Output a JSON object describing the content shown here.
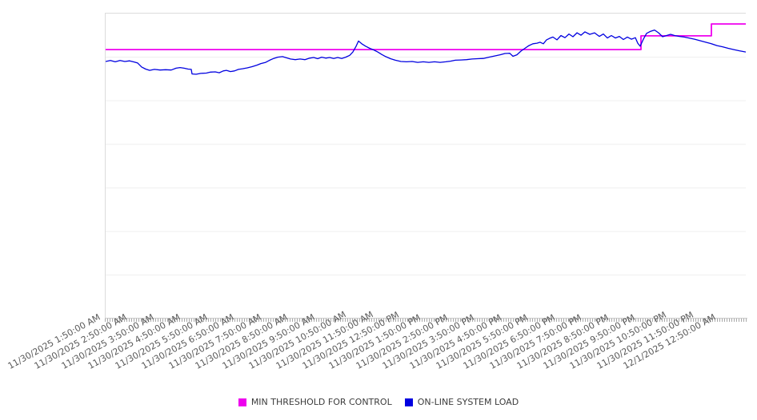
{
  "colors": {
    "background": "#ffffff",
    "grid": "#efefef",
    "plot_border": "#dcdcdc",
    "axis_line": "#c8c8c8",
    "tick": "#a8a8a8",
    "tick_label": "#595959",
    "legend_text": "#3c3c3c",
    "threshold_magenta": "#ee00ee",
    "load_blue": "#0000e0"
  },
  "chart_data": {
    "type": "line",
    "title": "",
    "x_axis": {
      "hours_span": 24,
      "tick_label_rotation_deg": -29,
      "labels": [
        "11/30/2025 1:50:00 AM",
        "11/30/2025 2:50:00 AM",
        "11/30/2025 3:50:00 AM",
        "11/30/2025 4:50:00 AM",
        "11/30/2025 5:50:00 AM",
        "11/30/2025 6:50:00 AM",
        "11/30/2025 7:50:00 AM",
        "11/30/2025 8:50:00 AM",
        "11/30/2025 9:50:00 AM",
        "11/30/2025 10:50:00 AM",
        "11/30/2025 11:50:00 AM",
        "11/30/2025 12:50:00 PM",
        "11/30/2025 1:50:00 PM",
        "11/30/2025 2:50:00 PM",
        "11/30/2025 3:50:00 PM",
        "11/30/2025 4:50:00 PM",
        "11/30/2025 5:50:00 PM",
        "11/30/2025 6:50:00 PM",
        "11/30/2025 7:50:00 PM",
        "11/30/2025 8:50:00 PM",
        "11/30/2025 9:50:00 PM",
        "11/30/2025 10:50:00 PM",
        "11/30/2025 11:50:00 PM",
        "12/1/2025 12:50:00 AM"
      ]
    },
    "y_axis": {
      "labels_visible": false,
      "gridline_divisions": 7,
      "relative_scale": [
        0,
        100
      ]
    },
    "legend": {
      "position": "bottom-center",
      "items": [
        "MIN THRESHOLD FOR CONTROL",
        "ON-LINE SYSTEM LOAD"
      ]
    },
    "series": [
      {
        "name": "MIN THRESHOLD FOR CONTROL",
        "color": "#ee00ee",
        "stroke_width": 1.8,
        "shape": "step",
        "points": [
          [
            0,
            88.2
          ],
          [
            20.07,
            88.2
          ],
          [
            20.07,
            92.7
          ],
          [
            22.71,
            92.7
          ],
          [
            22.71,
            96.6
          ],
          [
            24,
            96.6
          ]
        ]
      },
      {
        "name": "ON-LINE SYSTEM LOAD",
        "color": "#0000e0",
        "stroke_width": 1.3,
        "shape": "line",
        "points": [
          [
            0,
            84.3
          ],
          [
            0.18,
            84.6
          ],
          [
            0.36,
            84.2
          ],
          [
            0.54,
            84.6
          ],
          [
            0.72,
            84.3
          ],
          [
            0.9,
            84.5
          ],
          [
            1.08,
            84.1
          ],
          [
            1.2,
            83.8
          ],
          [
            1.35,
            82.5
          ],
          [
            1.5,
            81.8
          ],
          [
            1.65,
            81.4
          ],
          [
            1.83,
            81.7
          ],
          [
            2.04,
            81.5
          ],
          [
            2.25,
            81.6
          ],
          [
            2.46,
            81.5
          ],
          [
            2.64,
            82.1
          ],
          [
            2.79,
            82.3
          ],
          [
            2.94,
            82.1
          ],
          [
            3.09,
            81.8
          ],
          [
            3.21,
            81.7
          ],
          [
            3.24,
            80.2
          ],
          [
            3.39,
            80.1
          ],
          [
            3.57,
            80.4
          ],
          [
            3.78,
            80.5
          ],
          [
            3.93,
            80.8
          ],
          [
            4.11,
            80.9
          ],
          [
            4.26,
            80.6
          ],
          [
            4.41,
            81.2
          ],
          [
            4.53,
            81.4
          ],
          [
            4.68,
            81
          ],
          [
            4.83,
            81.2
          ],
          [
            4.98,
            81.7
          ],
          [
            5.13,
            81.9
          ],
          [
            5.31,
            82.2
          ],
          [
            5.49,
            82.6
          ],
          [
            5.67,
            83.1
          ],
          [
            5.82,
            83.6
          ],
          [
            6,
            84
          ],
          [
            6.15,
            84.7
          ],
          [
            6.3,
            85.3
          ],
          [
            6.45,
            85.7
          ],
          [
            6.63,
            85.9
          ],
          [
            6.78,
            85.5
          ],
          [
            6.93,
            85.1
          ],
          [
            7.11,
            84.9
          ],
          [
            7.29,
            85.1
          ],
          [
            7.47,
            84.9
          ],
          [
            7.65,
            85.4
          ],
          [
            7.8,
            85.6
          ],
          [
            7.95,
            85.2
          ],
          [
            8.1,
            85.7
          ],
          [
            8.25,
            85.4
          ],
          [
            8.4,
            85.6
          ],
          [
            8.55,
            85.3
          ],
          [
            8.7,
            85.6
          ],
          [
            8.85,
            85.3
          ],
          [
            9,
            85.7
          ],
          [
            9.15,
            86.3
          ],
          [
            9.27,
            87.4
          ],
          [
            9.39,
            89.3
          ],
          [
            9.48,
            91
          ],
          [
            9.6,
            90.1
          ],
          [
            9.75,
            89.3
          ],
          [
            9.9,
            88.6
          ],
          [
            10.05,
            88.1
          ],
          [
            10.2,
            87.4
          ],
          [
            10.35,
            86.6
          ],
          [
            10.5,
            85.9
          ],
          [
            10.68,
            85.2
          ],
          [
            10.86,
            84.7
          ],
          [
            11.07,
            84.3
          ],
          [
            11.28,
            84.2
          ],
          [
            11.49,
            84.3
          ],
          [
            11.7,
            84
          ],
          [
            11.91,
            84.2
          ],
          [
            12.12,
            84
          ],
          [
            12.33,
            84.2
          ],
          [
            12.54,
            84
          ],
          [
            12.75,
            84.2
          ],
          [
            12.93,
            84.4
          ],
          [
            13.11,
            84.7
          ],
          [
            13.32,
            84.8
          ],
          [
            13.53,
            84.9
          ],
          [
            13.74,
            85.1
          ],
          [
            13.95,
            85.2
          ],
          [
            14.16,
            85.3
          ],
          [
            14.37,
            85.7
          ],
          [
            14.58,
            86.1
          ],
          [
            14.79,
            86.5
          ],
          [
            14.97,
            86.9
          ],
          [
            15.15,
            87
          ],
          [
            15.27,
            86
          ],
          [
            15.42,
            86.5
          ],
          [
            15.57,
            87.7
          ],
          [
            15.72,
            88.6
          ],
          [
            15.87,
            89.5
          ],
          [
            16.02,
            90.1
          ],
          [
            16.17,
            90.3
          ],
          [
            16.29,
            90.6
          ],
          [
            16.41,
            90.1
          ],
          [
            16.53,
            91.4
          ],
          [
            16.65,
            91.9
          ],
          [
            16.77,
            92.3
          ],
          [
            16.92,
            91.4
          ],
          [
            17.07,
            92.8
          ],
          [
            17.22,
            92.1
          ],
          [
            17.37,
            93.3
          ],
          [
            17.52,
            92.4
          ],
          [
            17.67,
            93.7
          ],
          [
            17.82,
            92.9
          ],
          [
            17.97,
            94
          ],
          [
            18.15,
            93.2
          ],
          [
            18.33,
            93.7
          ],
          [
            18.51,
            92.5
          ],
          [
            18.66,
            93.3
          ],
          [
            18.81,
            92
          ],
          [
            18.96,
            92.8
          ],
          [
            19.11,
            92
          ],
          [
            19.26,
            92.5
          ],
          [
            19.41,
            91.5
          ],
          [
            19.56,
            92.3
          ],
          [
            19.71,
            91.6
          ],
          [
            19.86,
            92.1
          ],
          [
            19.95,
            90.3
          ],
          [
            20.04,
            89.3
          ],
          [
            20.16,
            91.6
          ],
          [
            20.28,
            93.5
          ],
          [
            20.43,
            94.2
          ],
          [
            20.58,
            94.6
          ],
          [
            20.73,
            93.7
          ],
          [
            20.88,
            92.4
          ],
          [
            21.03,
            92.8
          ],
          [
            21.18,
            93.2
          ],
          [
            21.33,
            92.8
          ],
          [
            21.51,
            92.5
          ],
          [
            21.69,
            92.3
          ],
          [
            21.87,
            92
          ],
          [
            22.08,
            91.6
          ],
          [
            22.29,
            91.1
          ],
          [
            22.5,
            90.6
          ],
          [
            22.71,
            90.1
          ],
          [
            22.92,
            89.5
          ],
          [
            23.13,
            89.1
          ],
          [
            23.34,
            88.6
          ],
          [
            23.55,
            88.2
          ],
          [
            23.76,
            87.8
          ],
          [
            24,
            87.4
          ]
        ]
      }
    ]
  }
}
